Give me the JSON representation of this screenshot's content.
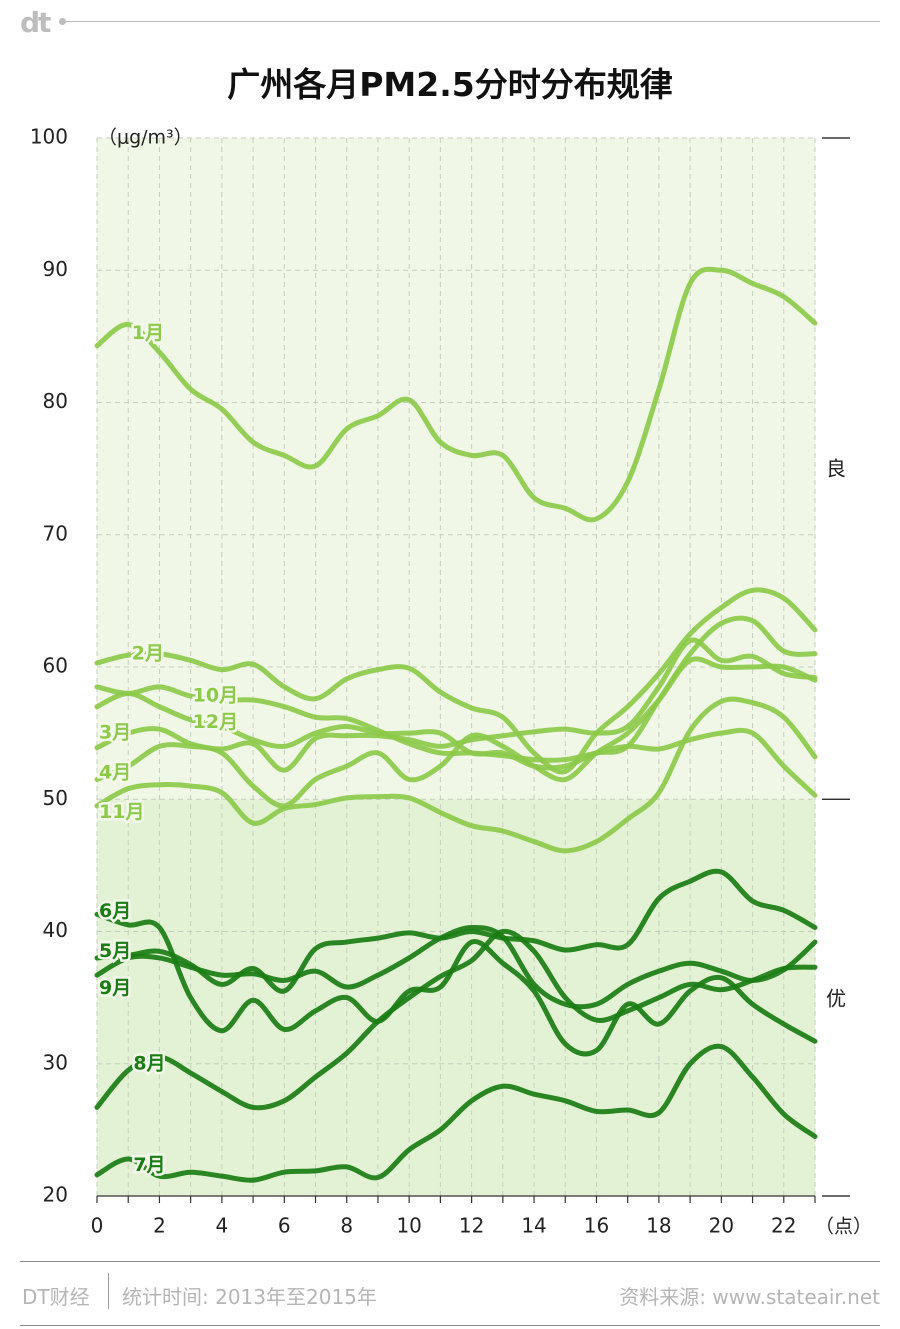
{
  "header": {
    "logo": "dt"
  },
  "chart_data": {
    "type": "line",
    "title": "广州各月PM2.5分时分布规律",
    "ylabel": "（μg/m³）",
    "xlabel": "（点）",
    "ylim": [
      20,
      100
    ],
    "xlim": [
      0,
      23
    ],
    "y_ticks": [
      "20",
      "30",
      "40",
      "50",
      "60",
      "70",
      "80",
      "90",
      "100"
    ],
    "x_ticks": [
      "0",
      "2",
      "4",
      "6",
      "8",
      "10",
      "12",
      "14",
      "16",
      "18",
      "20",
      "22"
    ],
    "x": [
      0,
      1,
      2,
      3,
      4,
      5,
      6,
      7,
      8,
      9,
      10,
      11,
      12,
      13,
      14,
      15,
      16,
      17,
      18,
      19,
      20,
      21,
      22,
      23
    ],
    "bands": [
      {
        "label": "良",
        "from": 50,
        "to": 100,
        "color": "#f0f7e6"
      },
      {
        "label": "优",
        "from": 20,
        "to": 50,
        "color": "#e3f1d4"
      }
    ],
    "series": [
      {
        "name": "1月",
        "color": "#8cca4a",
        "values": [
          84.3,
          85.9,
          83.8,
          81,
          79.5,
          77,
          76,
          75.2,
          78,
          79,
          80.2,
          77,
          76,
          76,
          72.8,
          72,
          71.2,
          74,
          81,
          89,
          90,
          89,
          88,
          86
        ]
      },
      {
        "name": "2月",
        "color": "#8cca4a",
        "values": [
          60.3,
          60.9,
          61,
          60.5,
          59.8,
          60.2,
          58.5,
          57.6,
          59.1,
          59.8,
          59.9,
          58.1,
          56.9,
          56.2,
          53.5,
          52.1,
          55,
          57,
          59.5,
          62.5,
          64.5,
          65.8,
          65.2,
          62.8
        ]
      },
      {
        "name": "10月",
        "color": "#8cca4a",
        "values": [
          58.5,
          58,
          58.5,
          57.8,
          57.5,
          57.5,
          57,
          56.2,
          56.1,
          55.2,
          54.2,
          53.5,
          53.5,
          53.3,
          53,
          53,
          53.5,
          54,
          57.5,
          61,
          63.3,
          63.5,
          61.2,
          61
        ]
      },
      {
        "name": "12月",
        "color": "#8cca4a",
        "values": [
          57,
          58,
          57,
          56,
          55.5,
          54.5,
          54,
          55,
          55.5,
          55,
          55,
          55,
          53.5,
          53.5,
          52.5,
          52.5,
          53.5,
          54,
          53.8,
          54.5,
          55,
          55,
          52.5,
          50.3
        ]
      },
      {
        "name": "3月",
        "color": "#8cca4a",
        "values": [
          53.9,
          55,
          55.3,
          54.2,
          53.8,
          54.2,
          52.2,
          54.6,
          54.8,
          54.8,
          54.5,
          54,
          54.5,
          54.8,
          55.1,
          55.3,
          55,
          55.5,
          58.5,
          62,
          60.5,
          60.8,
          59.5,
          59.2
        ]
      },
      {
        "name": "4月",
        "color": "#8cca4a",
        "values": [
          51.5,
          52.5,
          54,
          54,
          53.5,
          51,
          49.5,
          51.5,
          52.5,
          53.5,
          51.5,
          52.5,
          54.8,
          54,
          52.5,
          51.5,
          53.5,
          55,
          57.5,
          60.5,
          60,
          60,
          60,
          59
        ]
      },
      {
        "name": "11月",
        "color": "#8cca4a",
        "values": [
          49.5,
          50.8,
          51.1,
          51,
          50.5,
          48.2,
          49.3,
          49.6,
          50.1,
          50.2,
          50.1,
          49,
          48,
          47.6,
          46.8,
          46.1,
          46.8,
          48.5,
          50.5,
          55.2,
          57.4,
          57.3,
          56.2,
          53.2
        ]
      },
      {
        "name": "6月",
        "color": "#1a7d14",
        "values": [
          41.3,
          40.5,
          40.3,
          35,
          32.5,
          34.8,
          32.6,
          34,
          35,
          33.2,
          35.5,
          35.8,
          39.2,
          37.6,
          35.5,
          31.5,
          31,
          34.5,
          33,
          35.5,
          36.5,
          34.5,
          33,
          31.7
        ]
      },
      {
        "name": "5月",
        "color": "#1a7d14",
        "values": [
          38,
          38.2,
          38.5,
          37.5,
          36,
          37.2,
          35.5,
          38.7,
          39.2,
          39.5,
          39.9,
          39.5,
          40,
          39.5,
          39.3,
          38.6,
          39,
          39,
          42.5,
          43.8,
          44.5,
          42.3,
          41.6,
          40.3
        ]
      },
      {
        "name": "9月",
        "color": "#1a7d14",
        "values": [
          36.7,
          38,
          38,
          37.3,
          36.7,
          36.8,
          36.3,
          37,
          35.8,
          36.7,
          38,
          39.5,
          40.3,
          39.6,
          36,
          34.5,
          34.5,
          36,
          37,
          37.6,
          37,
          36.3,
          37.1,
          39.2
        ]
      },
      {
        "name": "8月",
        "color": "#1a7d14",
        "values": [
          26.7,
          29.5,
          30.5,
          29.3,
          27.9,
          26.7,
          27.2,
          29,
          30.8,
          33.2,
          35,
          36.6,
          37.8,
          40,
          38.5,
          35,
          33.3,
          34,
          35,
          36,
          35.6,
          36.3,
          37.2,
          37.3
        ]
      },
      {
        "name": "7月",
        "color": "#1a7d14",
        "values": [
          21.6,
          22.8,
          21.5,
          21.8,
          21.5,
          21.2,
          21.8,
          21.9,
          22.2,
          21.4,
          23.5,
          25,
          27.2,
          28.3,
          27.7,
          27.2,
          26.4,
          26.5,
          26.3,
          30,
          31.3,
          29,
          26.2,
          24.5
        ]
      }
    ]
  },
  "footer": {
    "brand": "DT财经",
    "period": "统计时间: 2013年至2015年",
    "source": "资料来源: www.stateair.net"
  }
}
